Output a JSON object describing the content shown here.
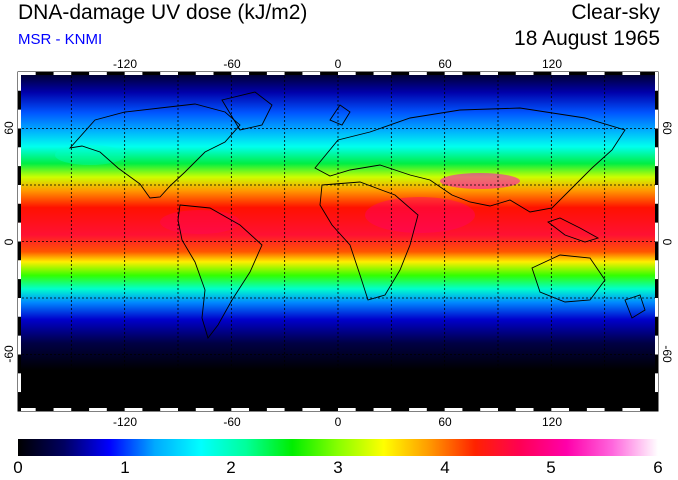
{
  "header": {
    "title": "DNA-damage UV dose (kJ/m2)",
    "source": "MSR - KNMI",
    "sky_condition": "Clear-sky",
    "date": "18 August 1965"
  },
  "colors": {
    "source_text": "#0000ff"
  },
  "map": {
    "lon_ticks": [
      "-120",
      "-60",
      "0",
      "60",
      "120"
    ],
    "lat_ticks": [
      "60",
      "0",
      "-60"
    ],
    "lon_range": [
      -180,
      180
    ],
    "lat_range": [
      -90,
      90
    ],
    "grid": "dashed, every 30 degrees"
  },
  "colorbar": {
    "min": 0,
    "max": 6,
    "labels": [
      "0",
      "1",
      "2",
      "3",
      "4",
      "5",
      "6"
    ],
    "stops": [
      "#000000",
      "#000060",
      "#0000ff",
      "#00aaff",
      "#00ffff",
      "#00ff99",
      "#00ee00",
      "#88ff00",
      "#ffff00",
      "#ff9900",
      "#ff2200",
      "#ff0055",
      "#ff00aa",
      "#ff66dd",
      "#ffffff"
    ]
  }
}
